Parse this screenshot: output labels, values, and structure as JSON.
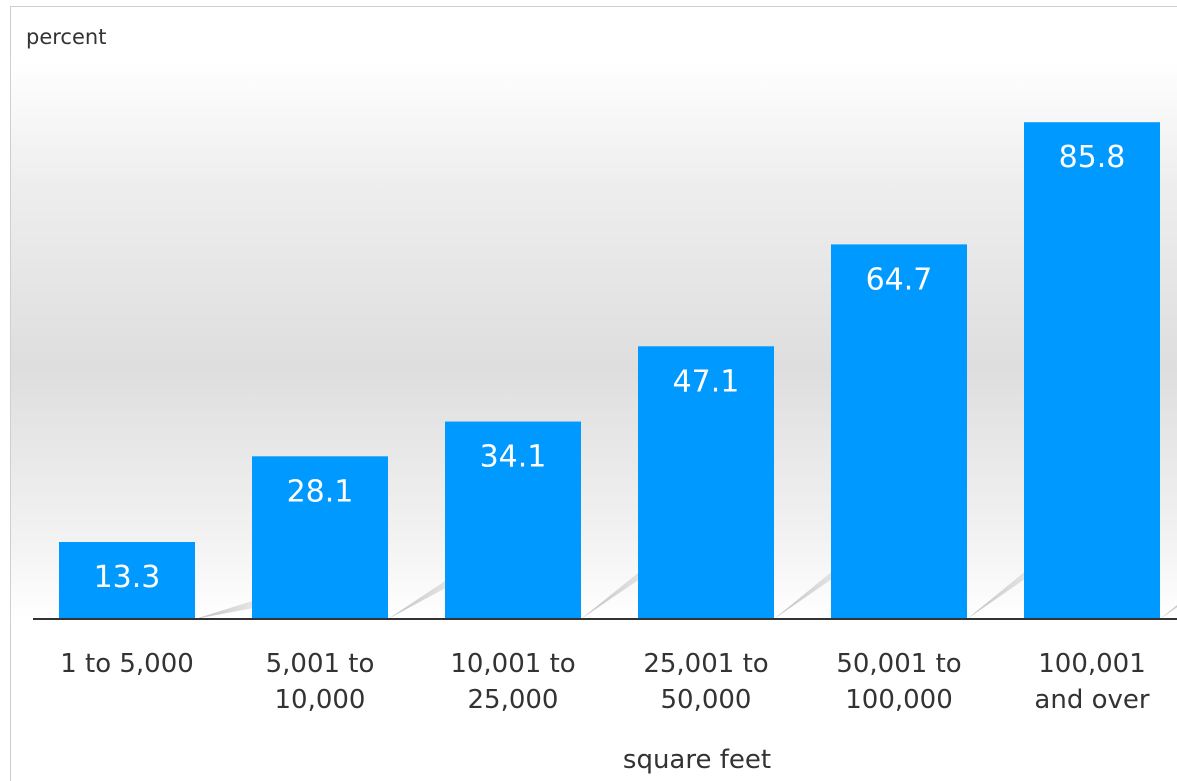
{
  "chart_data": {
    "type": "bar",
    "title": "",
    "ylabel": "percent",
    "xlabel": "square feet",
    "categories": [
      [
        "1 to 5,000"
      ],
      [
        "5,001 to",
        "10,000"
      ],
      [
        "10,001 to",
        "25,000"
      ],
      [
        "25,001 to",
        "50,000"
      ],
      [
        "50,001 to",
        "100,000"
      ],
      [
        "100,001",
        "and over"
      ]
    ],
    "values": [
      13.3,
      28.1,
      34.1,
      47.1,
      64.7,
      85.8
    ],
    "value_labels": [
      "13.3",
      "28.1",
      "34.1",
      "47.1",
      "64.7",
      "85.8"
    ],
    "ylim": [
      0,
      100
    ],
    "grid": false,
    "legend": "none",
    "bar_color": "#0099FF"
  }
}
